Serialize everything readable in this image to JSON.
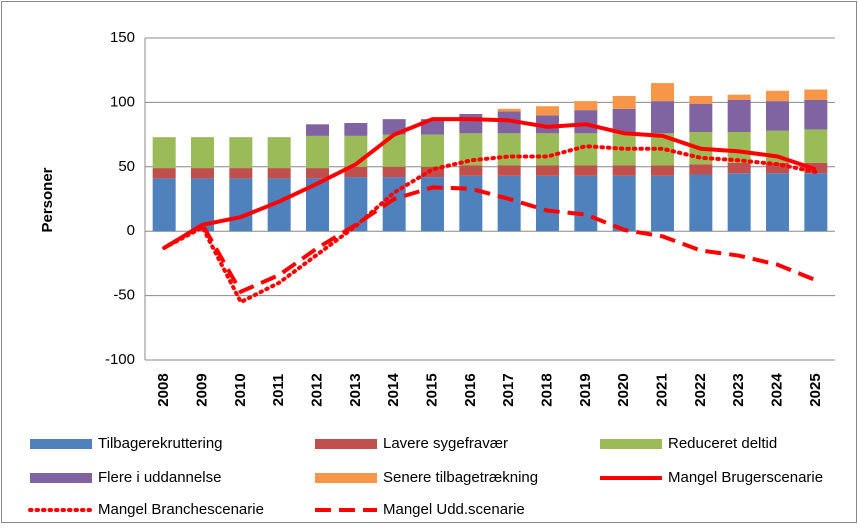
{
  "chart_data": {
    "type": "bar",
    "y_label": "Personer",
    "categories": [
      "2008",
      "2009",
      "2010",
      "2011",
      "2012",
      "2013",
      "2014",
      "2015",
      "2016",
      "2017",
      "2018",
      "2019",
      "2020",
      "2021",
      "2022",
      "2023",
      "2024",
      "2025"
    ],
    "ylim": [
      -100,
      150
    ],
    "yticks": [
      -100,
      -50,
      0,
      50,
      100,
      150
    ],
    "grid": true,
    "series": [
      {
        "name": "Tilbagerekruttering",
        "type": "bar",
        "color": "#4f81bd",
        "values": [
          41,
          41,
          41,
          41,
          41,
          42,
          42,
          42,
          43,
          43,
          43,
          43,
          43,
          43,
          44,
          45,
          45,
          45
        ]
      },
      {
        "name": "Lavere sygefravær",
        "type": "bar",
        "color": "#c0504d",
        "values": [
          8,
          8,
          8,
          8,
          8,
          8,
          8,
          8,
          8,
          8,
          8,
          8,
          8,
          8,
          8,
          8,
          8,
          8
        ]
      },
      {
        "name": "Reduceret deltid",
        "type": "bar",
        "color": "#9bbb59",
        "values": [
          24,
          24,
          24,
          24,
          25,
          24,
          25,
          25,
          25,
          25,
          25,
          25,
          25,
          25,
          25,
          24,
          25,
          26
        ]
      },
      {
        "name": "Flere i uddannelse",
        "type": "bar",
        "color": "#8064a2",
        "values": [
          0,
          0,
          0,
          0,
          9,
          10,
          12,
          12,
          15,
          17,
          14,
          18,
          19,
          25,
          22,
          25,
          23,
          23
        ]
      },
      {
        "name": "Senere tilbagetrækning",
        "type": "bar",
        "color": "#f79646",
        "values": [
          0,
          0,
          0,
          0,
          0,
          0,
          0,
          0,
          0,
          2,
          7,
          7,
          10,
          14,
          6,
          4,
          8,
          8
        ]
      },
      {
        "name": "Mangel Brugerscenarie",
        "type": "line",
        "line_style": "solid",
        "color": "#ff0000",
        "values": [
          -13,
          5,
          11,
          23,
          37,
          52,
          75,
          87,
          87,
          86,
          81,
          83,
          76,
          74,
          64,
          62,
          58,
          48
        ]
      },
      {
        "name": "Mangel Branchescenarie",
        "type": "line",
        "line_style": "dotted",
        "color": "#ff0000",
        "values": [
          -13,
          3,
          -55,
          -40,
          -18,
          4,
          30,
          48,
          55,
          58,
          58,
          66,
          64,
          64,
          57,
          55,
          52,
          46
        ]
      },
      {
        "name": "Mangel Udd.scenarie",
        "type": "line",
        "line_style": "dashed",
        "color": "#ff0000",
        "values": [
          -13,
          5,
          -47,
          -34,
          -13,
          5,
          25,
          34,
          33,
          25,
          16,
          13,
          1,
          -4,
          -15,
          -19,
          -26,
          -38
        ]
      }
    ]
  }
}
